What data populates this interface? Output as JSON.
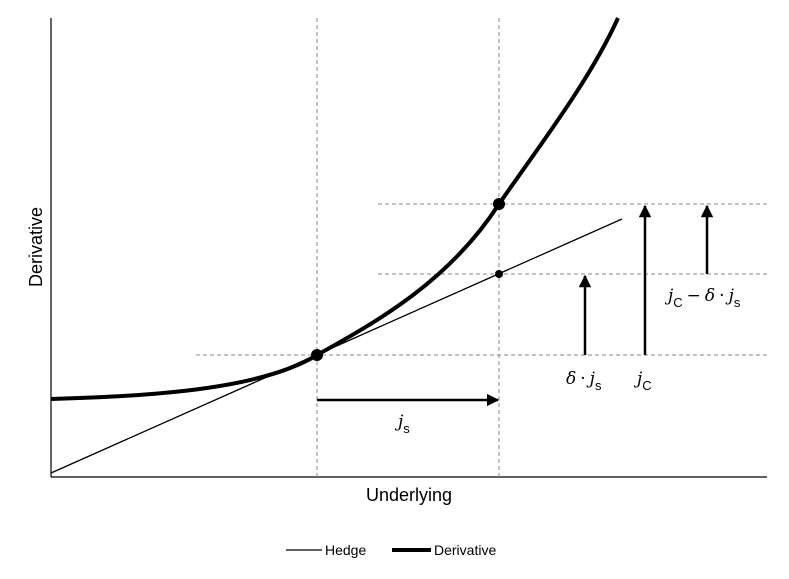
{
  "axes": {
    "x_label": "Underlying",
    "y_label": "Derivative"
  },
  "annotations": {
    "js": {
      "var": "j",
      "sub": "s"
    },
    "delta_js": {
      "delta": "δ",
      "dot": "·",
      "var": "j",
      "sub": "s"
    },
    "jc": {
      "var": "j",
      "sub": "C"
    },
    "jc_minus_delta_js": {
      "var1": "j",
      "sub1": "C",
      "minus": "−",
      "delta": "δ",
      "dot": "·",
      "var2": "j",
      "sub2": "s"
    }
  },
  "legend": {
    "hedge": "Hedge",
    "derivative": "Derivative"
  },
  "colors": {
    "line": "#000000",
    "guide": "#8a8a8a"
  }
}
